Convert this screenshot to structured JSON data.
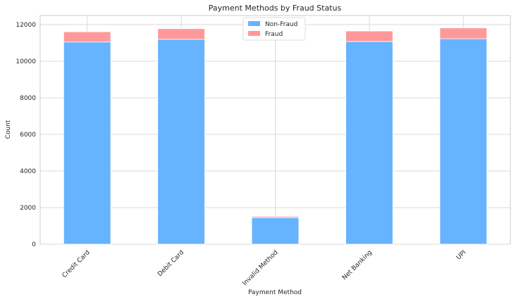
{
  "chart_data": {
    "type": "bar",
    "stacked": true,
    "title": "Payment Methods by Fraud Status",
    "xlabel": "Payment Method",
    "ylabel": "Count",
    "categories": [
      "Credit Card",
      "Debit Card",
      "Invalid Method",
      "Net Banking",
      "UPI"
    ],
    "series": [
      {
        "name": "Non-Fraud",
        "color": "#66b3ff",
        "values": [
          11050,
          11200,
          1450,
          11080,
          11230
        ]
      },
      {
        "name": "Fraud",
        "color": "#ff9999",
        "values": [
          560,
          580,
          70,
          570,
          590
        ]
      }
    ],
    "ylim": [
      0,
      12500
    ],
    "yticks": [
      0,
      2000,
      4000,
      6000,
      8000,
      10000,
      12000
    ],
    "grid": true,
    "legend_position": "top-center"
  }
}
